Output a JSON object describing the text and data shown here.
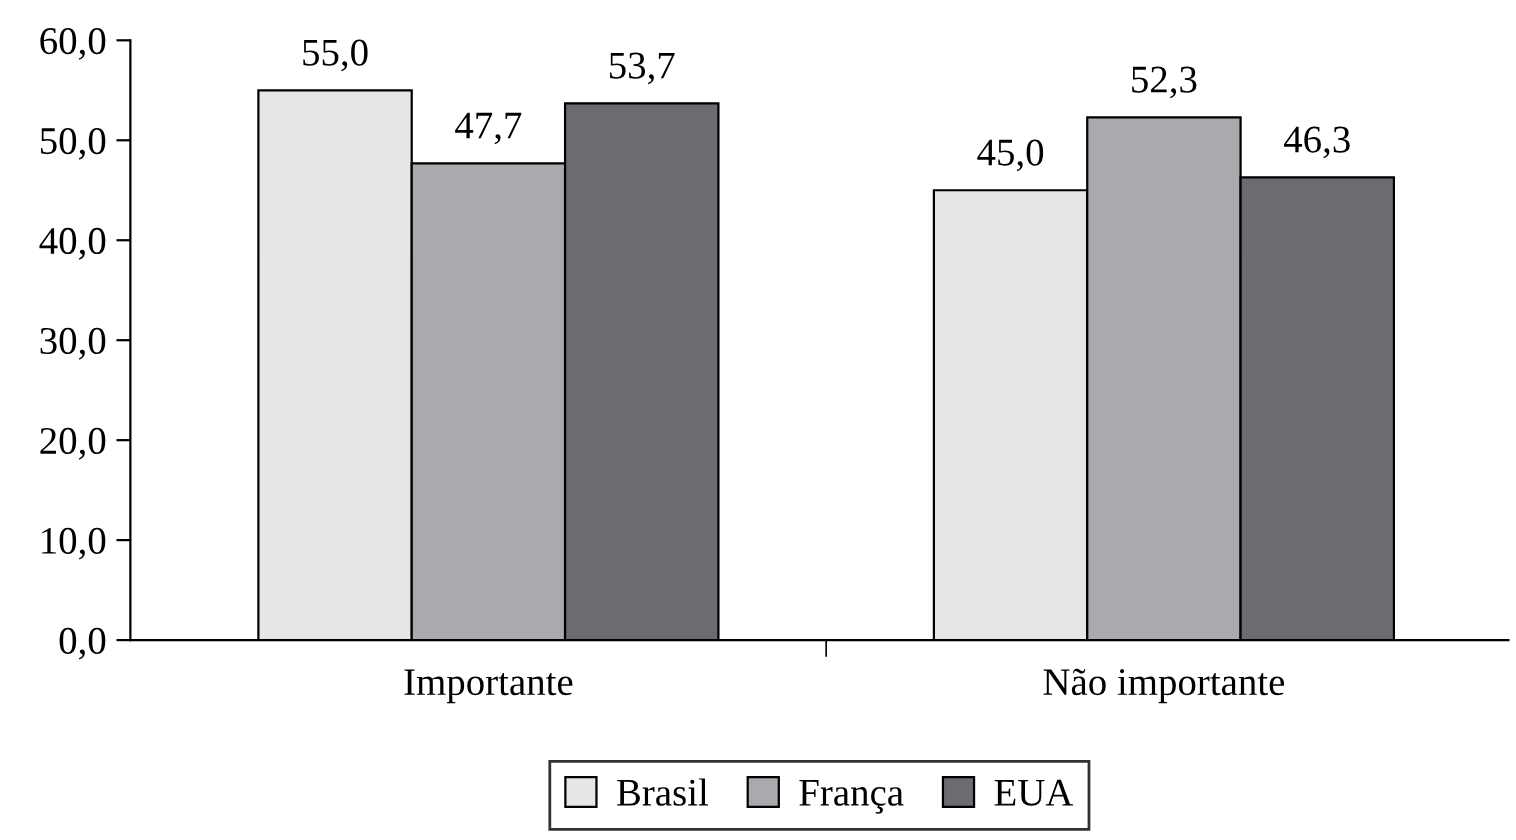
{
  "chart_data": {
    "type": "bar",
    "categories": [
      "Importante",
      "Não importante"
    ],
    "series": [
      {
        "name": "Brasil",
        "color": "#e6e6e8",
        "values": [
          55.0,
          45.0
        ],
        "value_labels": [
          "55,0",
          "45,0"
        ]
      },
      {
        "name": "França",
        "color": "#a9aaad",
        "values": [
          47.7,
          52.3
        ],
        "value_labels": [
          "47,7",
          "52,3"
        ]
      },
      {
        "name": "EUA",
        "color": "#6b6c70",
        "values": [
          53.7,
          46.3
        ],
        "value_labels": [
          "53,7",
          "46,3"
        ]
      }
    ],
    "ylim": [
      0,
      60
    ],
    "yticks": [
      {
        "value": 0,
        "label": "0,0"
      },
      {
        "value": 10,
        "label": "10,0"
      },
      {
        "value": 20,
        "label": "20,0"
      },
      {
        "value": 30,
        "label": "30,0"
      },
      {
        "value": 40,
        "label": "40,0"
      },
      {
        "value": 50,
        "label": "50,0"
      },
      {
        "value": 60,
        "label": "60,0"
      }
    ],
    "grid": false,
    "legend": "bottom"
  }
}
